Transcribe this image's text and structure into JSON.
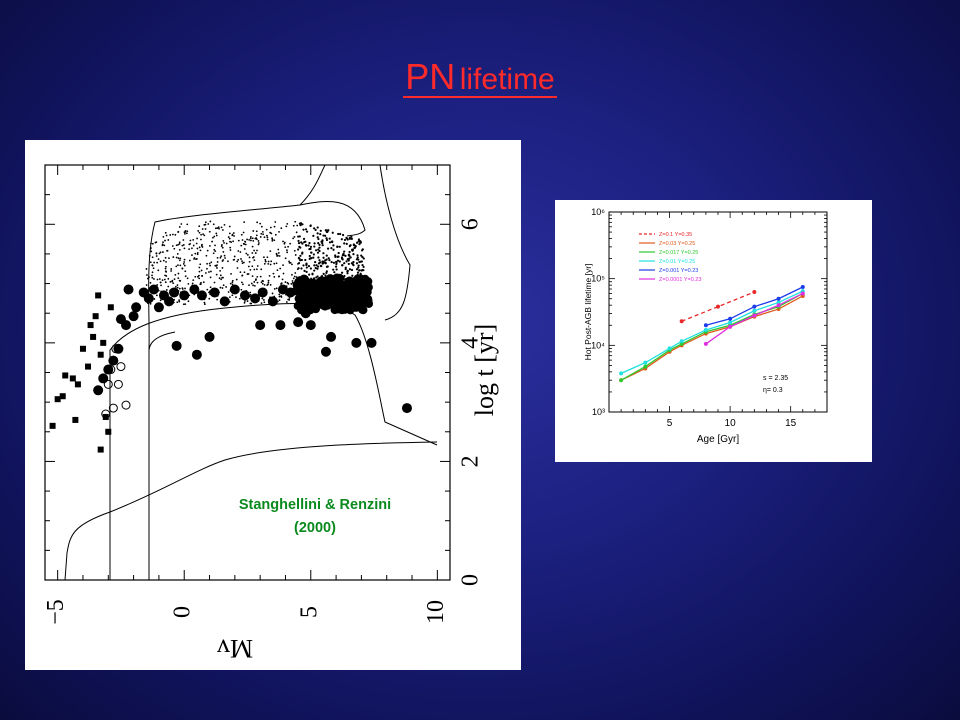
{
  "slide": {
    "title_main": "PN",
    "title_rest": "lifetime",
    "title_color": "#ff2a2a",
    "background_color": "#1c2080"
  },
  "chart_data": [
    {
      "type": "scatter",
      "title": "",
      "x_axis": {
        "label": "Mv",
        "ticks": [
          "-5",
          "0",
          "5",
          "10"
        ],
        "range": [
          -5.5,
          10.5
        ]
      },
      "y_axis": {
        "label": "log t [yr]",
        "ticks": [
          "0",
          "2",
          "4",
          "6"
        ],
        "range": [
          0,
          7
        ]
      },
      "grid": false,
      "annotation_line1": "Stanghellini & Renzini",
      "annotation_line2": "(2000)",
      "annotation_color": "#0b8a1e",
      "marker_types": [
        "small-dot",
        "large-filled-circle",
        "filled-square",
        "open-circle"
      ],
      "series": [
        {
          "marker": "large-filled-circle",
          "points": [
            [
              -2.2,
              4.9
            ],
            [
              -1.9,
              4.6
            ],
            [
              -1.6,
              4.85
            ],
            [
              -1.4,
              4.75
            ],
            [
              -1.2,
              4.9
            ],
            [
              -1.0,
              4.6
            ],
            [
              -0.8,
              4.8
            ],
            [
              -0.6,
              4.7
            ],
            [
              -0.4,
              4.85
            ],
            [
              0.0,
              4.8
            ],
            [
              0.4,
              4.9
            ],
            [
              0.7,
              4.8
            ],
            [
              1.2,
              4.85
            ],
            [
              1.6,
              4.7
            ],
            [
              2.0,
              4.9
            ],
            [
              2.4,
              4.8
            ],
            [
              2.8,
              4.75
            ],
            [
              3.1,
              4.85
            ],
            [
              3.5,
              4.7
            ],
            [
              3.9,
              4.9
            ],
            [
              4.2,
              4.85
            ],
            [
              4.6,
              4.75
            ],
            [
              1.0,
              4.1
            ],
            [
              -0.3,
              3.95
            ],
            [
              0.5,
              3.8
            ],
            [
              4.5,
              4.35
            ],
            [
              4.8,
              4.5
            ],
            [
              5.6,
              3.85
            ],
            [
              5.8,
              4.1
            ],
            [
              -2.6,
              3.9
            ],
            [
              -2.8,
              3.7
            ],
            [
              -3.0,
              3.55
            ],
            [
              -3.2,
              3.4
            ],
            [
              -3.4,
              3.2
            ],
            [
              -2.5,
              4.4
            ],
            [
              -2.3,
              4.3
            ],
            [
              3.0,
              4.3
            ],
            [
              5.0,
              4.3
            ],
            [
              6.8,
              4.0
            ],
            [
              7.4,
              4.0
            ],
            [
              8.8,
              2.9
            ],
            [
              3.8,
              4.3
            ],
            [
              -2.0,
              4.45
            ]
          ]
        },
        {
          "marker": "filled-square",
          "points": [
            [
              -5.2,
              2.6
            ],
            [
              -4.8,
              3.1
            ],
            [
              -4.4,
              3.4
            ],
            [
              -4.3,
              2.7
            ],
            [
              -4.2,
              3.3
            ],
            [
              -4.0,
              3.9
            ],
            [
              -3.8,
              3.6
            ],
            [
              -3.7,
              4.3
            ],
            [
              -3.6,
              4.1
            ],
            [
              -3.5,
              4.45
            ],
            [
              -3.4,
              4.8
            ],
            [
              -3.3,
              2.2
            ],
            [
              -3.0,
              2.5
            ],
            [
              -3.2,
              4.0
            ],
            [
              -3.1,
              2.75
            ],
            [
              -2.9,
              4.6
            ],
            [
              -5.0,
              3.05
            ],
            [
              -4.7,
              3.45
            ],
            [
              -3.3,
              3.8
            ]
          ]
        },
        {
          "marker": "open-circle",
          "points": [
            [
              -2.7,
              3.9
            ],
            [
              -2.9,
              3.55
            ],
            [
              -3.0,
              3.3
            ],
            [
              -2.6,
              3.3
            ],
            [
              -2.3,
              2.95
            ],
            [
              -3.1,
              2.8
            ],
            [
              -2.8,
              2.9
            ],
            [
              -2.5,
              3.6
            ]
          ]
        },
        {
          "marker": "small-dot",
          "description_region": "dense cloud between log t 4.6 and 6.0, Mv -1.5 to 7"
        }
      ]
    },
    {
      "type": "line",
      "title": "",
      "x_axis": {
        "label": "Age [Gyr]",
        "ticks": [
          "5",
          "10",
          "15"
        ],
        "range": [
          0,
          18
        ]
      },
      "y_axis": {
        "label": "Hot Post-AGB lifetime [yr]",
        "ticks": [
          "10³",
          "10⁴",
          "10⁵",
          "10⁶"
        ],
        "scale": "log",
        "range": [
          1000,
          1000000
        ]
      },
      "grid": false,
      "legend_position": "top-left",
      "annotations": [
        "s = 2.35",
        "η= 0.3"
      ],
      "series": [
        {
          "name": "Z=0.1    Y=0.35",
          "color": "#e8282a",
          "dashed": true,
          "x": [
            6.0,
            9.0,
            12.0
          ],
          "y": [
            23000,
            38000,
            63000
          ]
        },
        {
          "name": "Z=0.03   Y=0.25",
          "color": "#e05a1a",
          "dashed": false,
          "x": [
            1.0,
            3.0,
            5.0,
            6.0,
            8.0,
            10.0,
            12.0,
            14.0,
            16.0
          ],
          "y": [
            3000,
            4500,
            8000,
            10000,
            15000,
            19000,
            27000,
            35000,
            55000
          ]
        },
        {
          "name": "Z=0.017  Y=0.25",
          "color": "#2ec830",
          "dashed": false,
          "x": [
            1.0,
            3.0,
            5.0,
            6.0,
            8.0,
            10.0,
            12.0,
            14.0,
            16.0
          ],
          "y": [
            3000,
            4800,
            8500,
            10500,
            16000,
            20000,
            29000,
            38000,
            60000
          ]
        },
        {
          "name": "Z=0.01   Y=0.25",
          "color": "#20e0e0",
          "dashed": false,
          "x": [
            1.0,
            3.0,
            5.0,
            6.0,
            8.0,
            10.0,
            12.0,
            14.0,
            16.0
          ],
          "y": [
            3800,
            5500,
            9000,
            11500,
            17000,
            22000,
            33000,
            44000,
            65000
          ]
        },
        {
          "name": "Z=0.001  Y=0.23",
          "color": "#1c3ce8",
          "dashed": false,
          "x": [
            8.0,
            10.0,
            12.0,
            14.0,
            16.0
          ],
          "y": [
            20000,
            25000,
            38000,
            50000,
            75000
          ]
        },
        {
          "name": "Z=0.0001 Y=0.23",
          "color": "#e030e0",
          "dashed": false,
          "x": [
            8.0,
            10.0,
            12.0,
            14.0,
            16.0
          ],
          "y": [
            10500,
            19000,
            28000,
            40000,
            60000
          ]
        }
      ]
    }
  ]
}
